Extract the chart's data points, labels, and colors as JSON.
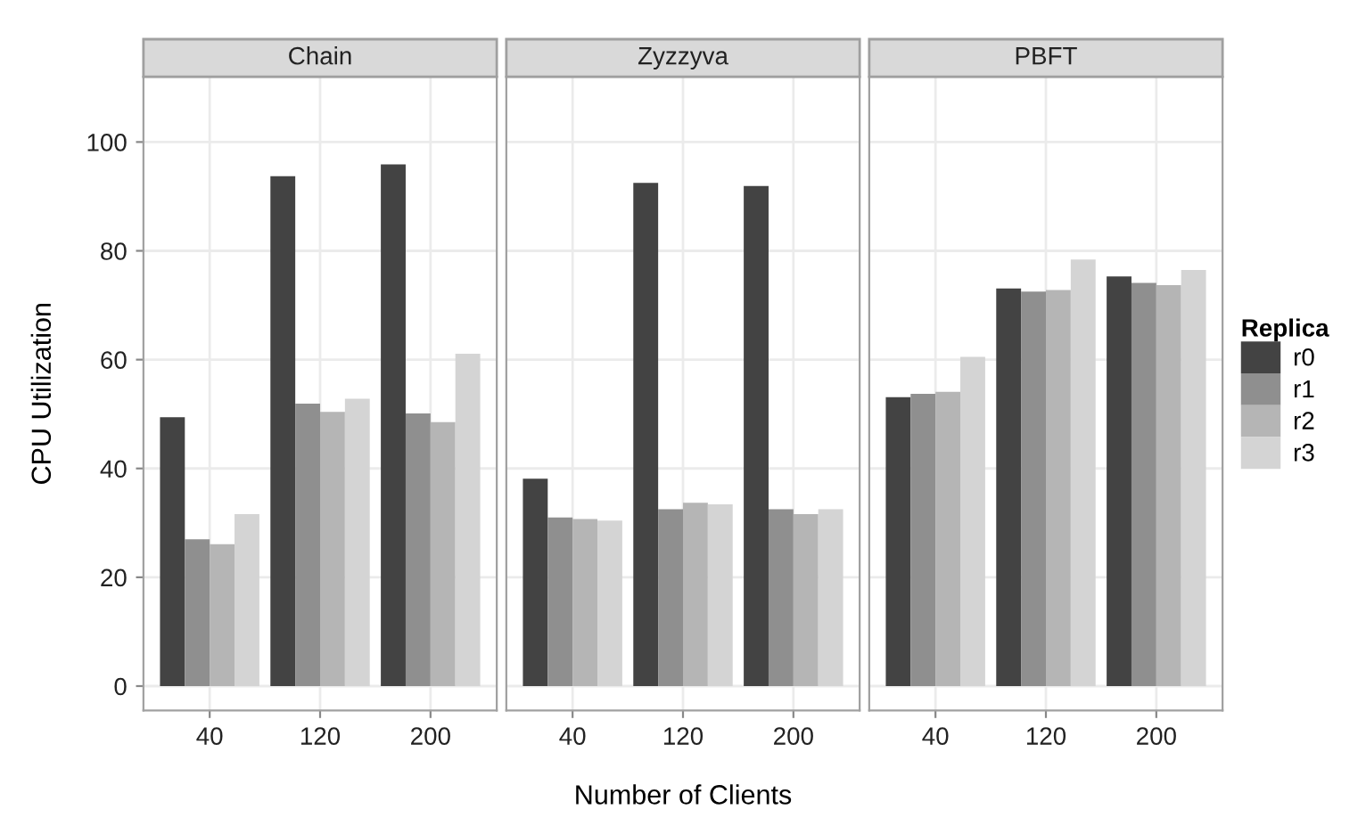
{
  "chart_data": [
    {
      "type": "bar",
      "title": "Chain",
      "ylabel": "CPU Utilization",
      "categories": [
        "40",
        "120",
        "200"
      ],
      "ylim": [
        -4.5,
        112
      ],
      "yticks": [
        0,
        20,
        40,
        60,
        80,
        100
      ],
      "grid": true,
      "legend": false,
      "series": [
        {
          "color": "#434343",
          "values": [
            49.4,
            93.7,
            95.9
          ]
        },
        {
          "color": "#8f8f8f",
          "values": [
            27.0,
            51.9,
            50.1
          ]
        },
        {
          "color": "#b5b5b5",
          "values": [
            26.1,
            50.4,
            48.5
          ]
        },
        {
          "color": "#d4d4d4",
          "values": [
            31.6,
            52.8,
            61.1
          ]
        }
      ]
    },
    {
      "type": "bar",
      "title": "Zyzzyva",
      "xlabel": "Number of Clients",
      "categories": [
        "40",
        "120",
        "200"
      ],
      "ylim": [
        -4.5,
        112
      ],
      "yticks": [
        0,
        20,
        40,
        60,
        80,
        100
      ],
      "grid": true,
      "legend": false,
      "tick_labels": "x",
      "series": [
        {
          "color": "#434343",
          "values": [
            38.1,
            92.5,
            91.9
          ]
        },
        {
          "color": "#8f8f8f",
          "values": [
            31.0,
            32.5,
            32.5
          ]
        },
        {
          "color": "#b5b5b5",
          "values": [
            30.7,
            33.7,
            31.6
          ]
        },
        {
          "color": "#d4d4d4",
          "values": [
            30.4,
            33.4,
            32.5
          ]
        }
      ]
    },
    {
      "type": "bar",
      "title": "PBFT",
      "legend_title": "Replica",
      "categories": [
        "40",
        "120",
        "200"
      ],
      "ylim": [
        -4.5,
        112
      ],
      "yticks": [
        0,
        20,
        40,
        60,
        80,
        100
      ],
      "grid": true,
      "legend": "right",
      "tick_labels": "x",
      "series": [
        {
          "name": "r0",
          "color": "#434343",
          "values": [
            53.1,
            73.1,
            75.3
          ]
        },
        {
          "name": "r1",
          "color": "#8f8f8f",
          "values": [
            53.7,
            72.5,
            74.1
          ]
        },
        {
          "name": "r2",
          "color": "#b5b5b5",
          "values": [
            54.1,
            72.8,
            73.7
          ]
        },
        {
          "name": "r3",
          "color": "#d4d4d4",
          "values": [
            60.5,
            78.4,
            76.5
          ]
        }
      ]
    }
  ]
}
